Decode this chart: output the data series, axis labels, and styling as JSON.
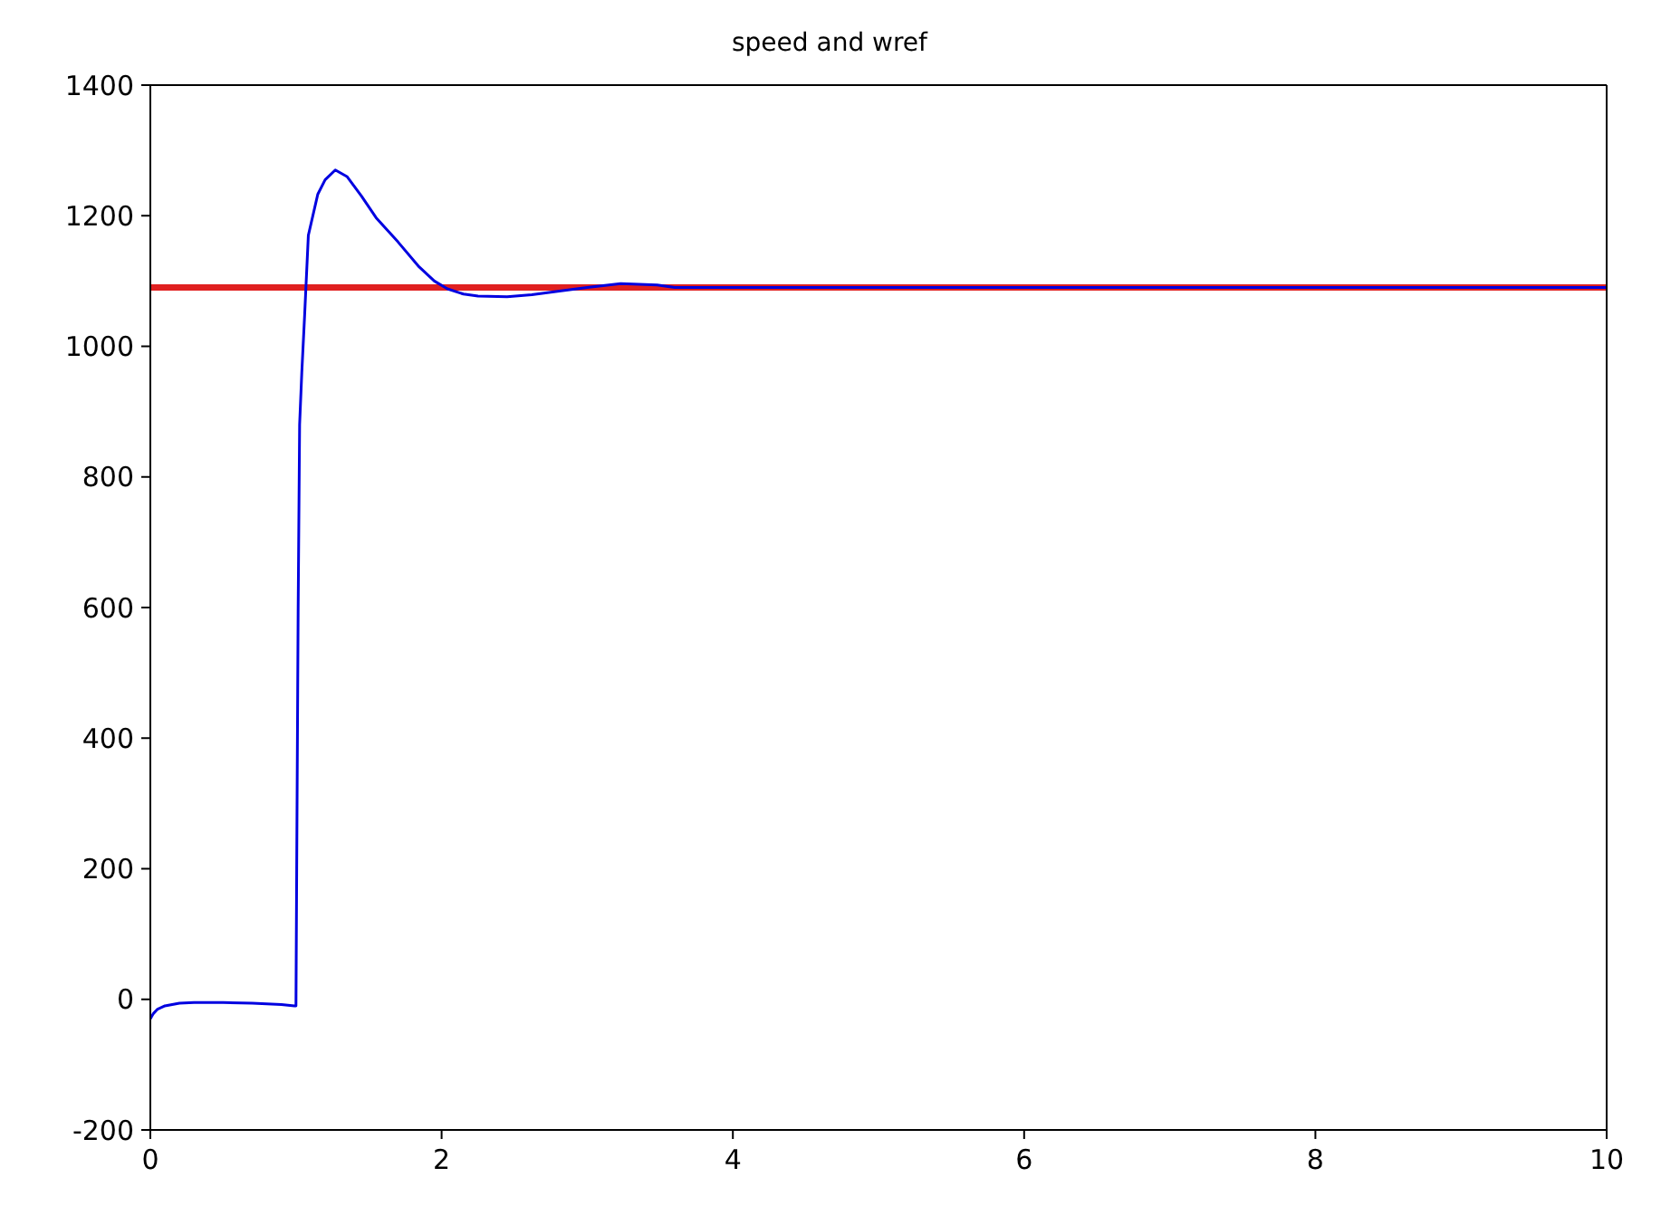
{
  "chart_data": {
    "type": "line",
    "title": "speed and wref",
    "xlim": [
      0,
      10
    ],
    "xticks": [
      0,
      2,
      4,
      6,
      8,
      10
    ],
    "ylim": [
      -200,
      1400
    ],
    "yticks": [
      -200,
      0,
      200,
      400,
      600,
      800,
      1000,
      1200,
      1400
    ],
    "grid": false,
    "legend": false,
    "marker": "none",
    "line_style": "solid",
    "series": [
      {
        "color": "#e02020",
        "x": [
          0,
          10
        ],
        "values": [
          1090,
          1090
        ]
      },
      {
        "color": "#0000e0",
        "x": [
          0,
          0.02,
          0.05,
          0.1,
          0.2,
          0.3,
          0.5,
          0.7,
          0.9,
          0.99,
          1.0,
          1.005,
          1.015,
          1.025,
          1.04,
          1.06,
          1.085,
          1.15,
          1.2,
          1.27,
          1.35,
          1.45,
          1.55,
          1.7,
          1.84,
          1.95,
          2.04,
          2.15,
          2.25,
          2.45,
          2.62,
          2.82,
          3.0,
          3.23,
          3.48,
          3.6,
          4,
          6,
          8,
          10
        ],
        "values": [
          -30,
          -22,
          -15,
          -10,
          -6,
          -5,
          -5,
          -6,
          -8,
          -10,
          -10,
          200,
          600,
          880,
          960,
          1050,
          1170,
          1233,
          1255,
          1270,
          1260,
          1230,
          1197,
          1160,
          1123,
          1100,
          1088,
          1080,
          1077,
          1076,
          1079,
          1085,
          1090,
          1096,
          1094,
          1090,
          1090,
          1090,
          1090,
          1090
        ]
      }
    ]
  }
}
